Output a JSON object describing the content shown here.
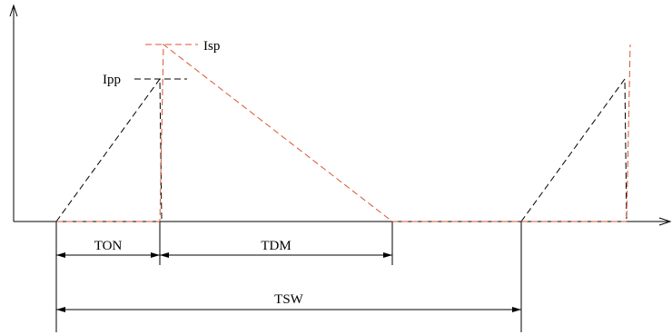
{
  "labels": {
    "isp": "Isp",
    "ipp": "Ipp",
    "ton": "TON",
    "tdm": "TDM",
    "tsw": "TSW"
  },
  "colors": {
    "primary_current": "#000000",
    "secondary_current": "#d8552f",
    "axis": "#000000"
  }
}
